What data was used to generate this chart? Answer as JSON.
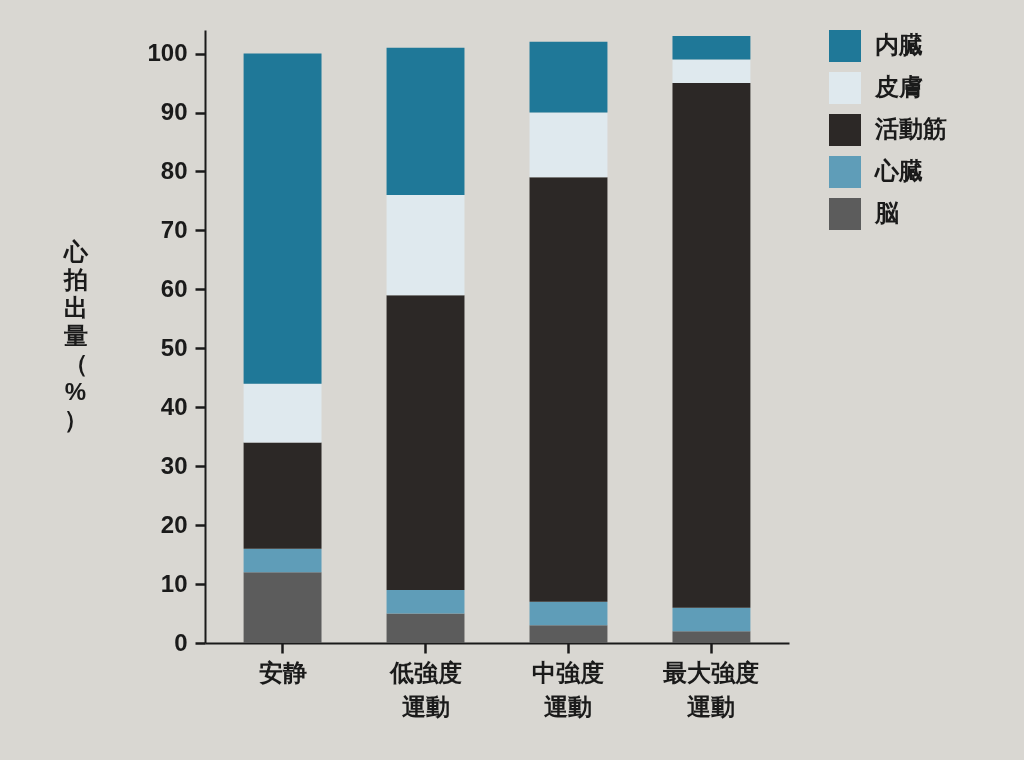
{
  "chart_data": {
    "type": "bar",
    "stacked": true,
    "categories": [
      "安静",
      "低強度運動",
      "中強度運動",
      "最大強度運動"
    ],
    "ylabel": "心拍出量（%）",
    "ylim": [
      0,
      104
    ],
    "yticks": [
      0,
      10,
      20,
      30,
      40,
      50,
      60,
      70,
      80,
      90,
      100
    ],
    "legend": "top right",
    "series": [
      {
        "name": "脳",
        "color": "#5c5c5c",
        "values": [
          12,
          5,
          3,
          2
        ]
      },
      {
        "name": "心臓",
        "color": "#5f9db8",
        "values": [
          4,
          4,
          4,
          4
        ]
      },
      {
        "name": "活動筋",
        "color": "#2c2826",
        "values": [
          18,
          50,
          72,
          89
        ]
      },
      {
        "name": "皮膚",
        "color": "#dfe9ee",
        "values": [
          10,
          17,
          11,
          4
        ]
      },
      {
        "name": "内臓",
        "color": "#1f7898",
        "values": [
          56,
          25,
          12,
          4
        ]
      }
    ]
  }
}
